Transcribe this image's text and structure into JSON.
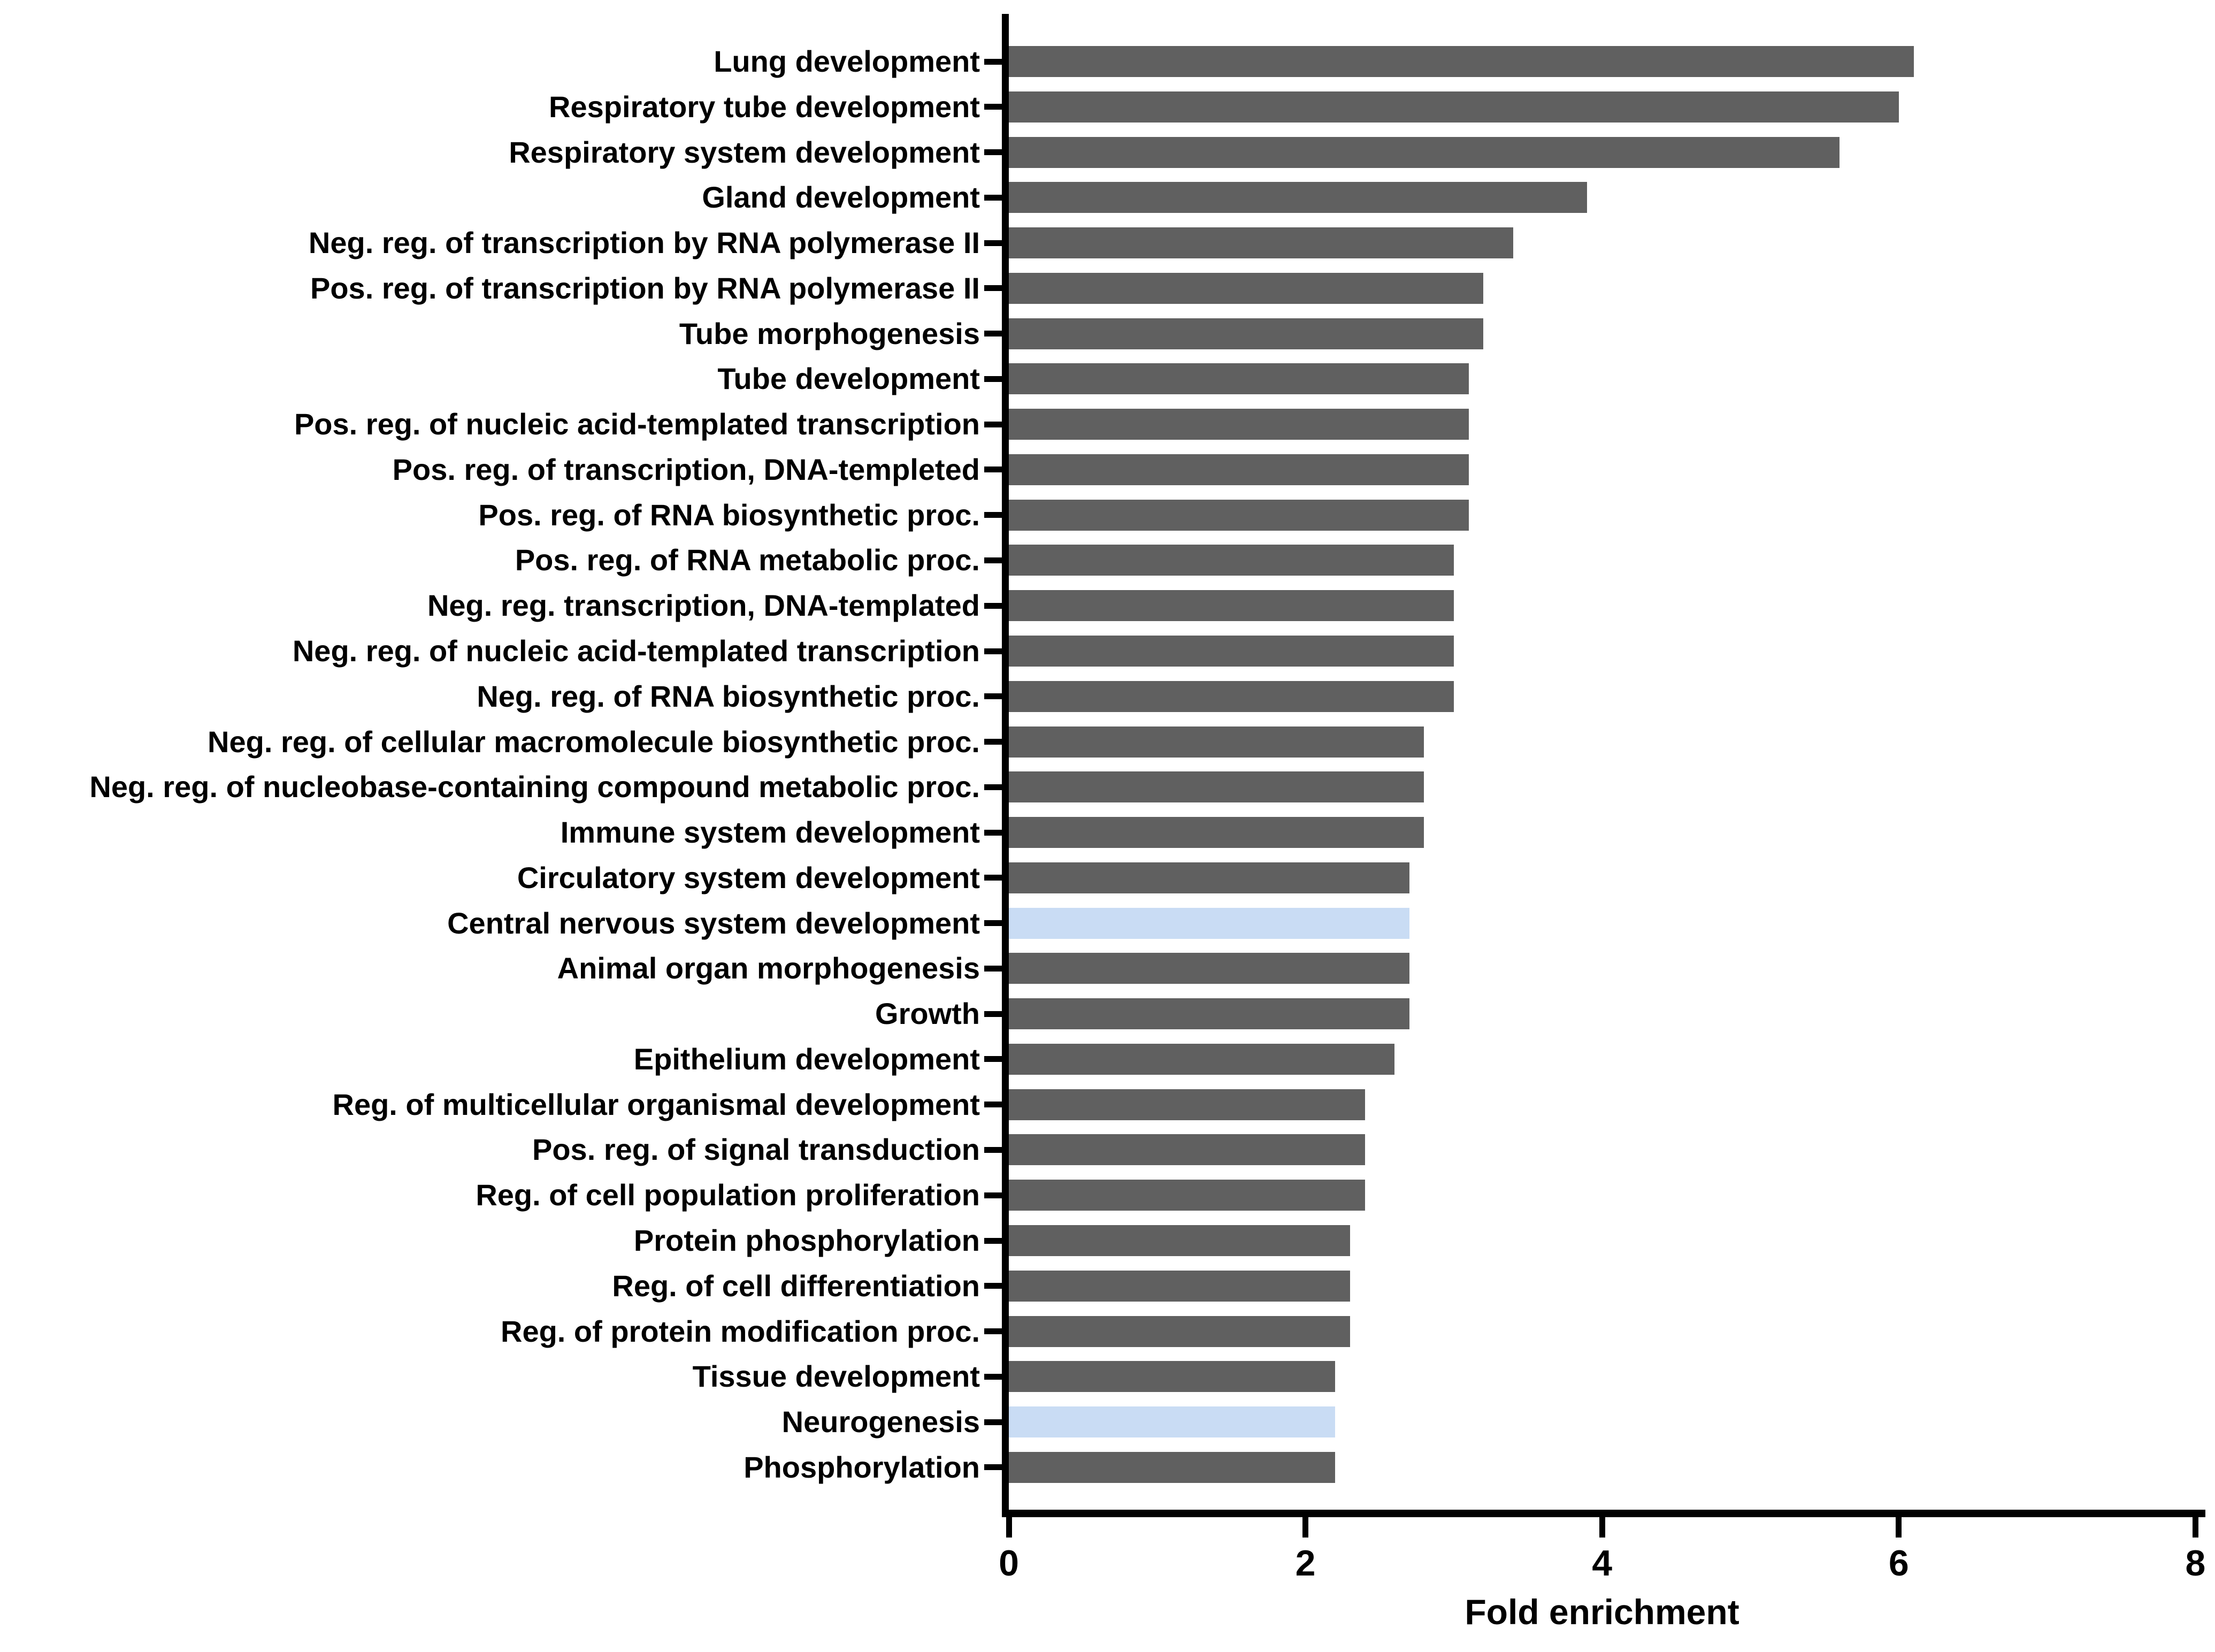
{
  "chart_data": {
    "type": "bar",
    "orientation": "horizontal",
    "title": "",
    "xlabel": "Fold enrichment",
    "ylabel": "",
    "xlim": [
      0,
      8
    ],
    "xticks": [
      0,
      2,
      4,
      6,
      8
    ],
    "grid": false,
    "legend": false,
    "bar_color": "#606060",
    "highlight_color": "#c9dcf4",
    "axis_color": "#000000",
    "background_color": "#ffffff",
    "highlighted_categories": [
      "Central nervous system development",
      "Neurogenesis"
    ],
    "categories": [
      "Lung development",
      "Respiratory tube development",
      "Respiratory system development",
      "Gland development",
      "Neg. reg. of transcription by RNA polymerase II",
      "Pos. reg. of transcription by RNA polymerase II",
      "Tube morphogenesis",
      "Tube development",
      "Pos. reg. of nucleic acid-templated transcription",
      "Pos. reg. of transcription, DNA-templeted",
      "Pos. reg. of RNA biosynthetic proc.",
      "Pos. reg. of RNA metabolic proc.",
      "Neg. reg. transcription, DNA-templated",
      "Neg. reg. of nucleic acid-templated transcription",
      "Neg. reg. of RNA biosynthetic proc.",
      "Neg. reg. of cellular macromolecule biosynthetic proc.",
      "Neg. reg. of nucleobase-containing compound metabolic proc.",
      "Immune system development",
      "Circulatory system development",
      "Central nervous system development",
      "Animal organ morphogenesis",
      "Growth",
      "Epithelium development",
      "Reg. of multicellular organismal development",
      "Pos. reg. of signal transduction",
      "Reg. of cell population proliferation",
      "Protein phosphorylation",
      "Reg. of cell differentiation",
      "Reg. of protein modification proc.",
      "Tissue development",
      "Neurogenesis",
      "Phosphorylation"
    ],
    "values": [
      6.1,
      6.0,
      5.6,
      3.9,
      3.4,
      3.2,
      3.2,
      3.1,
      3.1,
      3.1,
      3.1,
      3.0,
      3.0,
      3.0,
      3.0,
      2.8,
      2.8,
      2.8,
      2.7,
      2.7,
      2.7,
      2.7,
      2.6,
      2.4,
      2.4,
      2.4,
      2.3,
      2.3,
      2.3,
      2.2,
      2.2,
      2.2
    ]
  }
}
